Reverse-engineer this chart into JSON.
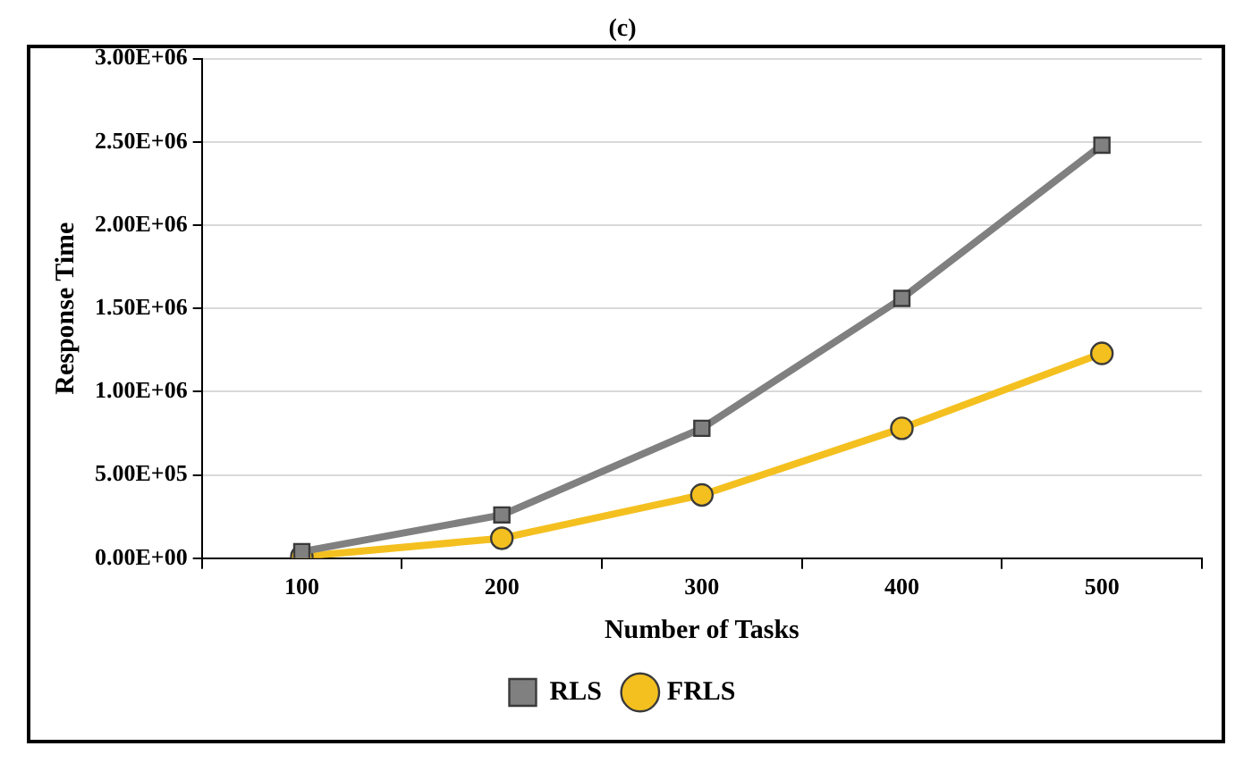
{
  "chart_data": {
    "type": "line",
    "title": "(c)",
    "xlabel": "Number of Tasks",
    "ylabel": "Response Time",
    "categories": [
      "100",
      "200",
      "300",
      "400",
      "500"
    ],
    "series": [
      {
        "name": "FRLS",
        "color": "#f4c020",
        "marker": "circle",
        "values": [
          10000,
          120000,
          380000,
          780000,
          1230000
        ]
      },
      {
        "name": "RLS",
        "color": "#808080",
        "marker": "square",
        "values": [
          40000,
          260000,
          780000,
          1560000,
          2480000
        ]
      }
    ],
    "ylim": [
      0,
      3000000
    ],
    "yticks": [
      {
        "value": 0,
        "label": "0.00E+00"
      },
      {
        "value": 500000,
        "label": "5.00E+05"
      },
      {
        "value": 1000000,
        "label": "1.00E+06"
      },
      {
        "value": 1500000,
        "label": "1.50E+06"
      },
      {
        "value": 2000000,
        "label": "2.00E+06"
      },
      {
        "value": 2500000,
        "label": "2.50E+06"
      },
      {
        "value": 3000000,
        "label": "3.00E+06"
      }
    ],
    "grid": "y",
    "legend": "bottom",
    "line_style": "solid"
  }
}
